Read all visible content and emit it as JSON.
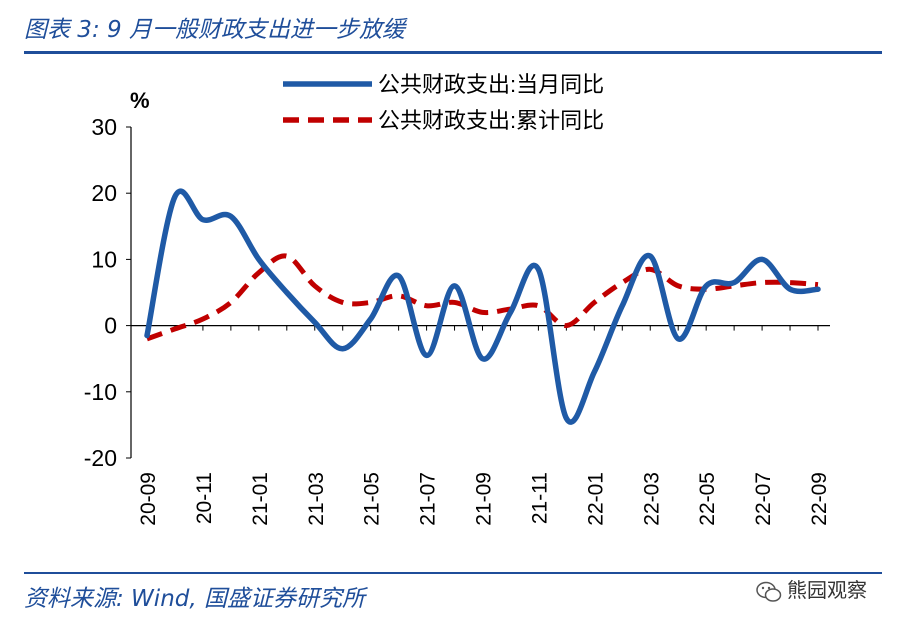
{
  "header": {
    "title": "图表 3:  9 月一般财政支出进一步放缓"
  },
  "footer": {
    "source": "资料来源: Wind, 国盛证券研究所",
    "watermark": "熊园观察"
  },
  "colors": {
    "brand": "#1f4e9a",
    "monthly_line": "#1f5aa6",
    "cumulative_line": "#c00000"
  },
  "chart_data": {
    "type": "line",
    "unit_label": "%",
    "ylim": [
      -20,
      30
    ],
    "y_ticks": [
      30,
      20,
      10,
      0,
      -10,
      -20
    ],
    "x_tick_labels": [
      "20-09",
      "20-11",
      "21-01",
      "21-03",
      "21-05",
      "21-07",
      "21-09",
      "21-11",
      "22-01",
      "22-03",
      "22-05",
      "22-07",
      "22-09"
    ],
    "x": [
      "20-09",
      "20-10",
      "20-11",
      "20-12",
      "21-01",
      "21-02",
      "21-03",
      "21-04",
      "21-05",
      "21-06",
      "21-07",
      "21-08",
      "21-09",
      "21-10",
      "21-11",
      "21-12",
      "22-01",
      "22-02",
      "22-03",
      "22-04",
      "22-05",
      "22-06",
      "22-07",
      "22-08",
      "22-09"
    ],
    "legend_position": "top",
    "grid": false,
    "series": [
      {
        "name": "公共财政支出:当月同比",
        "style": "solid",
        "values": [
          -1.5,
          19.5,
          16,
          16.5,
          10,
          5,
          0.5,
          -3.5,
          1,
          7.5,
          -4.5,
          6,
          -5,
          2,
          8.5,
          -14,
          -7,
          3,
          10.5,
          -2,
          6,
          6.5,
          10,
          5.5,
          5.5
        ]
      },
      {
        "name": "公共财政支出:累计同比",
        "style": "dashed",
        "values": [
          -2,
          -0.5,
          1,
          3.5,
          8,
          10.5,
          6,
          3.5,
          3.5,
          4.5,
          3,
          3.5,
          2,
          2.5,
          3,
          0,
          3.5,
          6.5,
          8.5,
          6,
          5.5,
          6,
          6.5,
          6.5,
          6.2
        ]
      }
    ]
  }
}
